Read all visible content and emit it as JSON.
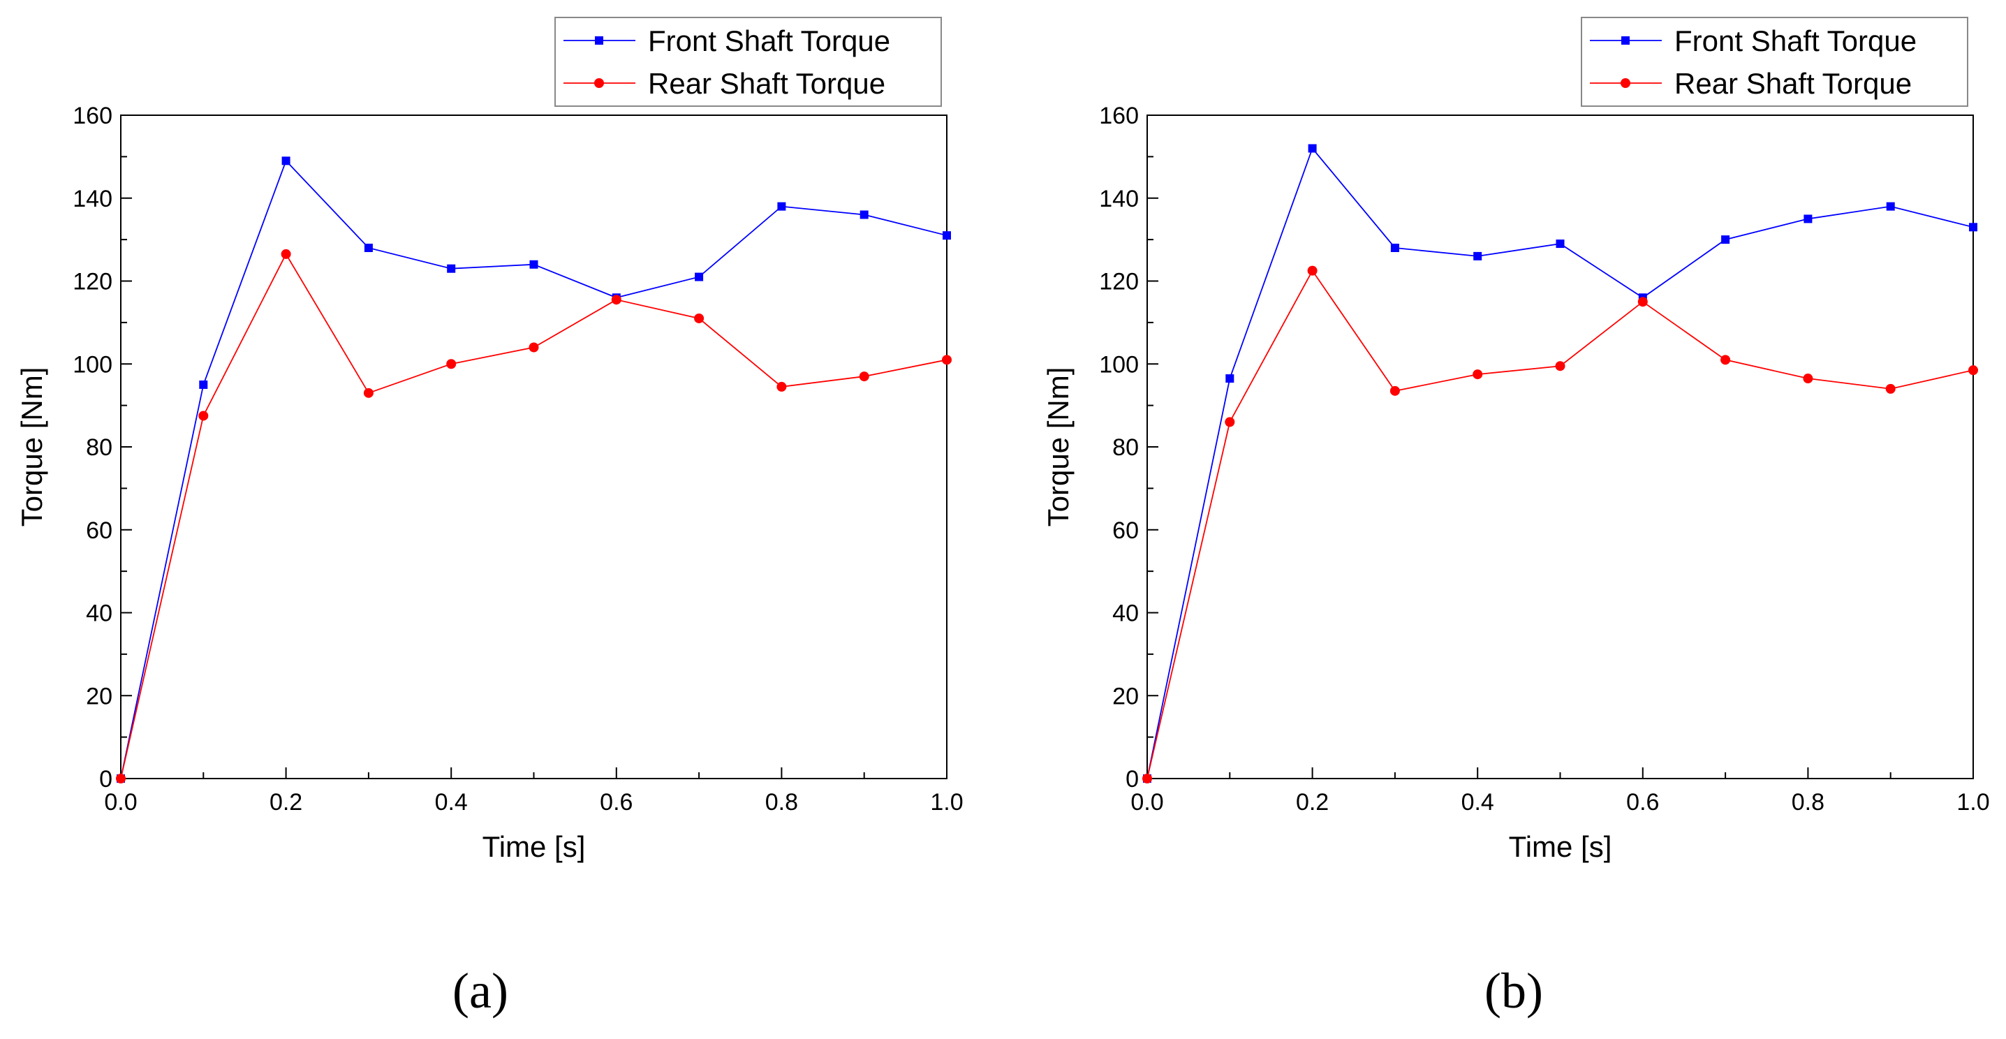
{
  "chart_data": [
    {
      "type": "line",
      "panel_label": "(a)",
      "xlabel": "Time [s]",
      "ylabel": "Torque [Nm]",
      "xlim": [
        0,
        1.0
      ],
      "ylim": [
        0,
        160
      ],
      "xticks": [
        "0.0",
        "0.2",
        "0.4",
        "0.6",
        "0.8",
        "1.0"
      ],
      "yticks": [
        "0",
        "20",
        "40",
        "60",
        "80",
        "100",
        "120",
        "140",
        "160"
      ],
      "x": [
        0,
        0.1,
        0.2,
        0.3,
        0.4,
        0.5,
        0.6,
        0.7,
        0.8,
        0.9,
        1.0
      ],
      "legend_position": "top-right",
      "series": [
        {
          "name": "Front Shaft Torque",
          "color": "#0000ff",
          "marker": "square",
          "values": [
            0,
            95,
            149,
            128,
            123,
            124,
            116,
            121,
            138,
            136,
            131
          ]
        },
        {
          "name": "Rear Shaft Torque",
          "color": "#ff0000",
          "marker": "circle",
          "values": [
            0,
            87.5,
            126.5,
            93,
            100,
            104,
            115.5,
            111,
            94.5,
            97,
            101
          ]
        }
      ]
    },
    {
      "type": "line",
      "panel_label": "(b)",
      "xlabel": "Time [s]",
      "ylabel": "Torque [Nm]",
      "xlim": [
        0,
        1.0
      ],
      "ylim": [
        0,
        160
      ],
      "xticks": [
        "0.0",
        "0.2",
        "0.4",
        "0.6",
        "0.8",
        "1.0"
      ],
      "yticks": [
        "0",
        "20",
        "40",
        "60",
        "80",
        "100",
        "120",
        "140",
        "160"
      ],
      "x": [
        0,
        0.1,
        0.2,
        0.3,
        0.4,
        0.5,
        0.6,
        0.7,
        0.8,
        0.9,
        1.0
      ],
      "legend_position": "top-right",
      "series": [
        {
          "name": "Front Shaft Torque",
          "color": "#0000ff",
          "marker": "square",
          "values": [
            0,
            96.5,
            152,
            128,
            126,
            129,
            116,
            130,
            135,
            138,
            133
          ]
        },
        {
          "name": "Rear Shaft Torque",
          "color": "#ff0000",
          "marker": "circle",
          "values": [
            0,
            86,
            122.5,
            93.5,
            97.5,
            99.5,
            115,
            101,
            96.5,
            94,
            98.5
          ]
        }
      ]
    }
  ]
}
